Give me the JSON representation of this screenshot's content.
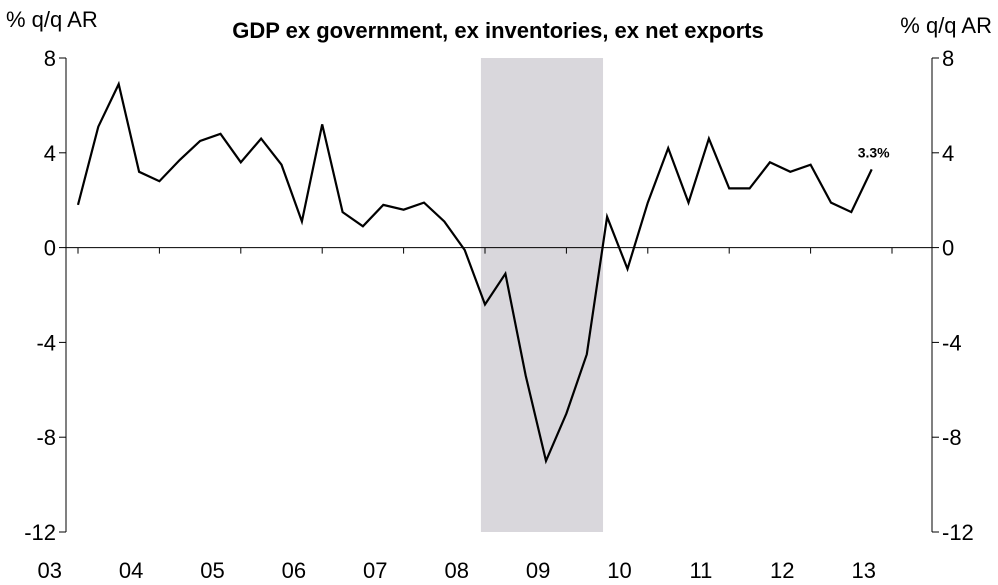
{
  "chart_data": {
    "type": "line",
    "title": "GDP ex government, ex inventories, ex net exports",
    "y_unit_left": "% q/q AR",
    "y_unit_right": "% q/q AR",
    "ylim": [
      -12,
      8
    ],
    "yticks": [
      8,
      4,
      0,
      -4,
      -8,
      -12
    ],
    "y_tick_labels": [
      "8",
      "4",
      "0",
      "-4",
      "-8",
      "-12"
    ],
    "xlim": [
      2003,
      2013.5
    ],
    "x_tick_labels": [
      "03",
      "04",
      "05",
      "06",
      "07",
      "08",
      "09",
      "10",
      "11",
      "12",
      "13"
    ],
    "x_tick_years": [
      2003,
      2004,
      2005,
      2006,
      2007,
      2008,
      2009,
      2010,
      2011,
      2012,
      2013
    ],
    "grid": false,
    "zero_line": true,
    "shaded_region": {
      "x_start": 2007.95,
      "x_end": 2009.45,
      "color": "#d9d7dc"
    },
    "series": [
      {
        "color": "#000000",
        "x": [
          2003.0,
          2003.25,
          2003.5,
          2003.75,
          2004.0,
          2004.25,
          2004.5,
          2004.75,
          2005.0,
          2005.25,
          2005.5,
          2005.75,
          2006.0,
          2006.25,
          2006.5,
          2006.75,
          2007.0,
          2007.25,
          2007.5,
          2007.75,
          2008.0,
          2008.25,
          2008.5,
          2008.75,
          2009.0,
          2009.25,
          2009.5,
          2009.75,
          2010.0,
          2010.25,
          2010.5,
          2010.75,
          2011.0,
          2011.25,
          2011.5,
          2011.75,
          2012.0,
          2012.25,
          2012.5,
          2012.75
        ],
        "values": [
          1.8,
          5.1,
          6.9,
          3.2,
          2.8,
          3.7,
          4.5,
          4.8,
          3.6,
          4.6,
          3.5,
          1.1,
          5.2,
          1.5,
          0.9,
          1.8,
          1.6,
          1.9,
          1.1,
          -0.1,
          -2.4,
          -1.1,
          -5.4,
          -9.0,
          -7.0,
          -4.5,
          1.3,
          -0.9,
          1.9,
          4.2,
          1.9,
          4.6,
          2.5,
          2.5,
          3.6,
          3.2,
          3.5,
          1.9,
          1.5,
          3.3
        ]
      }
    ],
    "annotation": {
      "text": "3.3%",
      "x": 2012.75,
      "y": 3.3
    }
  }
}
